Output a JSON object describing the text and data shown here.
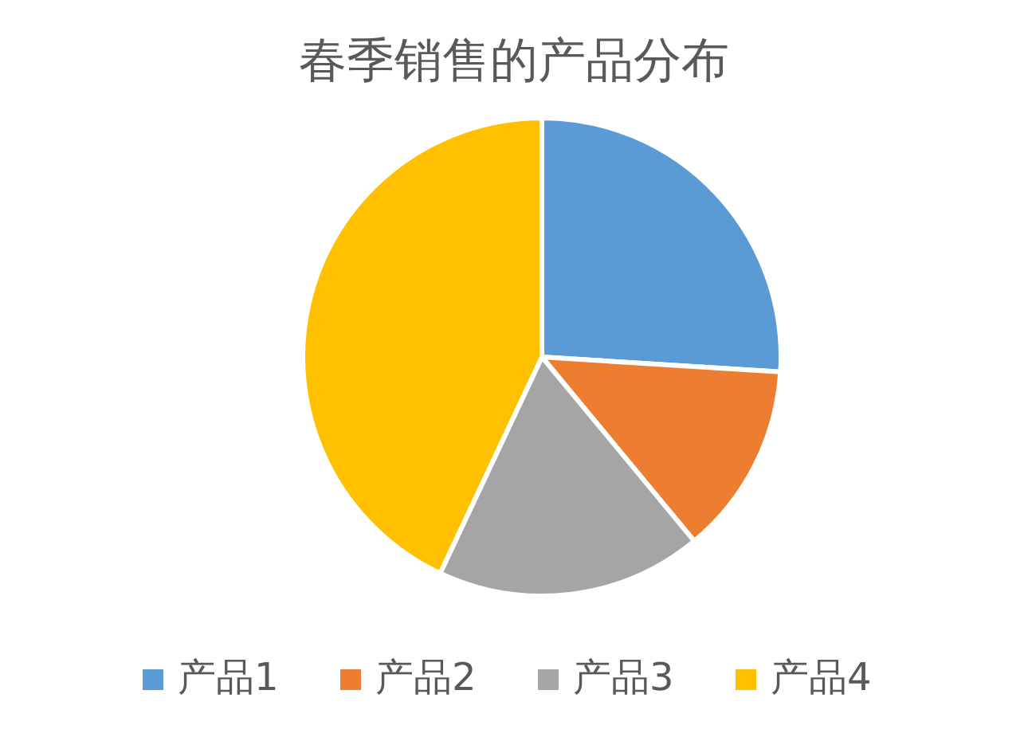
{
  "chart_data": {
    "type": "pie",
    "title": "春季销售的产品分布",
    "categories": [
      "产品1",
      "产品2",
      "产品3",
      "产品4"
    ],
    "values": [
      26,
      13,
      18,
      43
    ],
    "colors": [
      "#5b9bd5",
      "#ed7d31",
      "#a5a5a5",
      "#ffc000"
    ],
    "legend": "bottom"
  }
}
